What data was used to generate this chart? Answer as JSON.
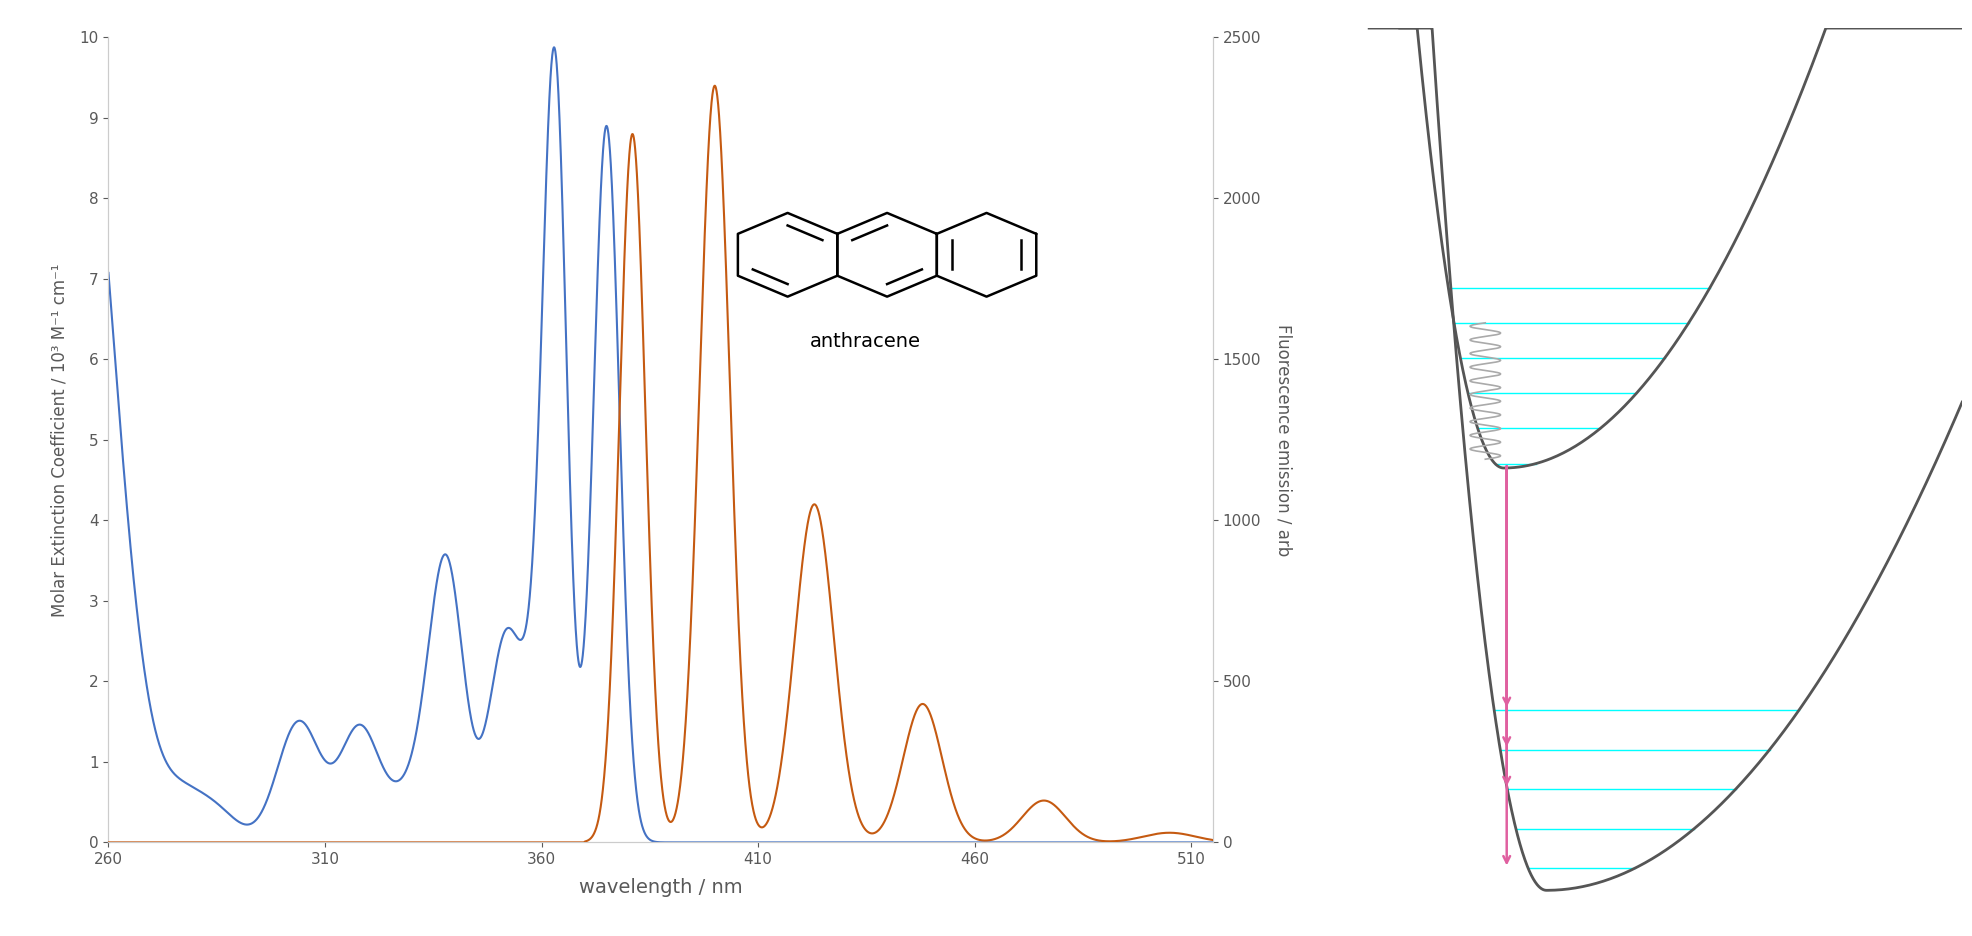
{
  "left_ylabel": "Molar Extinction Coefficient / 10³ M⁻¹ cm⁻¹",
  "right_ylabel": "Fluorescence emission / arb",
  "xlabel": "wavelength / nm",
  "xlim": [
    260,
    515
  ],
  "ylim_left": [
    0,
    10
  ],
  "ylim_right": [
    0,
    2500
  ],
  "xticks": [
    260,
    310,
    360,
    410,
    460,
    510
  ],
  "yticks_left": [
    0,
    1,
    2,
    3,
    4,
    5,
    6,
    7,
    8,
    9,
    10
  ],
  "yticks_right": [
    0,
    500,
    1000,
    1500,
    2000,
    2500
  ],
  "blue_color": "#4472C4",
  "orange_color": "#C55A11",
  "background_color": "#ffffff",
  "label_color": "#595959",
  "black_bg": "#000000",
  "cyan_color": "#00FFFF",
  "pink_color": "#E060A0",
  "gray_curve": "#555555",
  "spring_color": "#aaaaaa"
}
